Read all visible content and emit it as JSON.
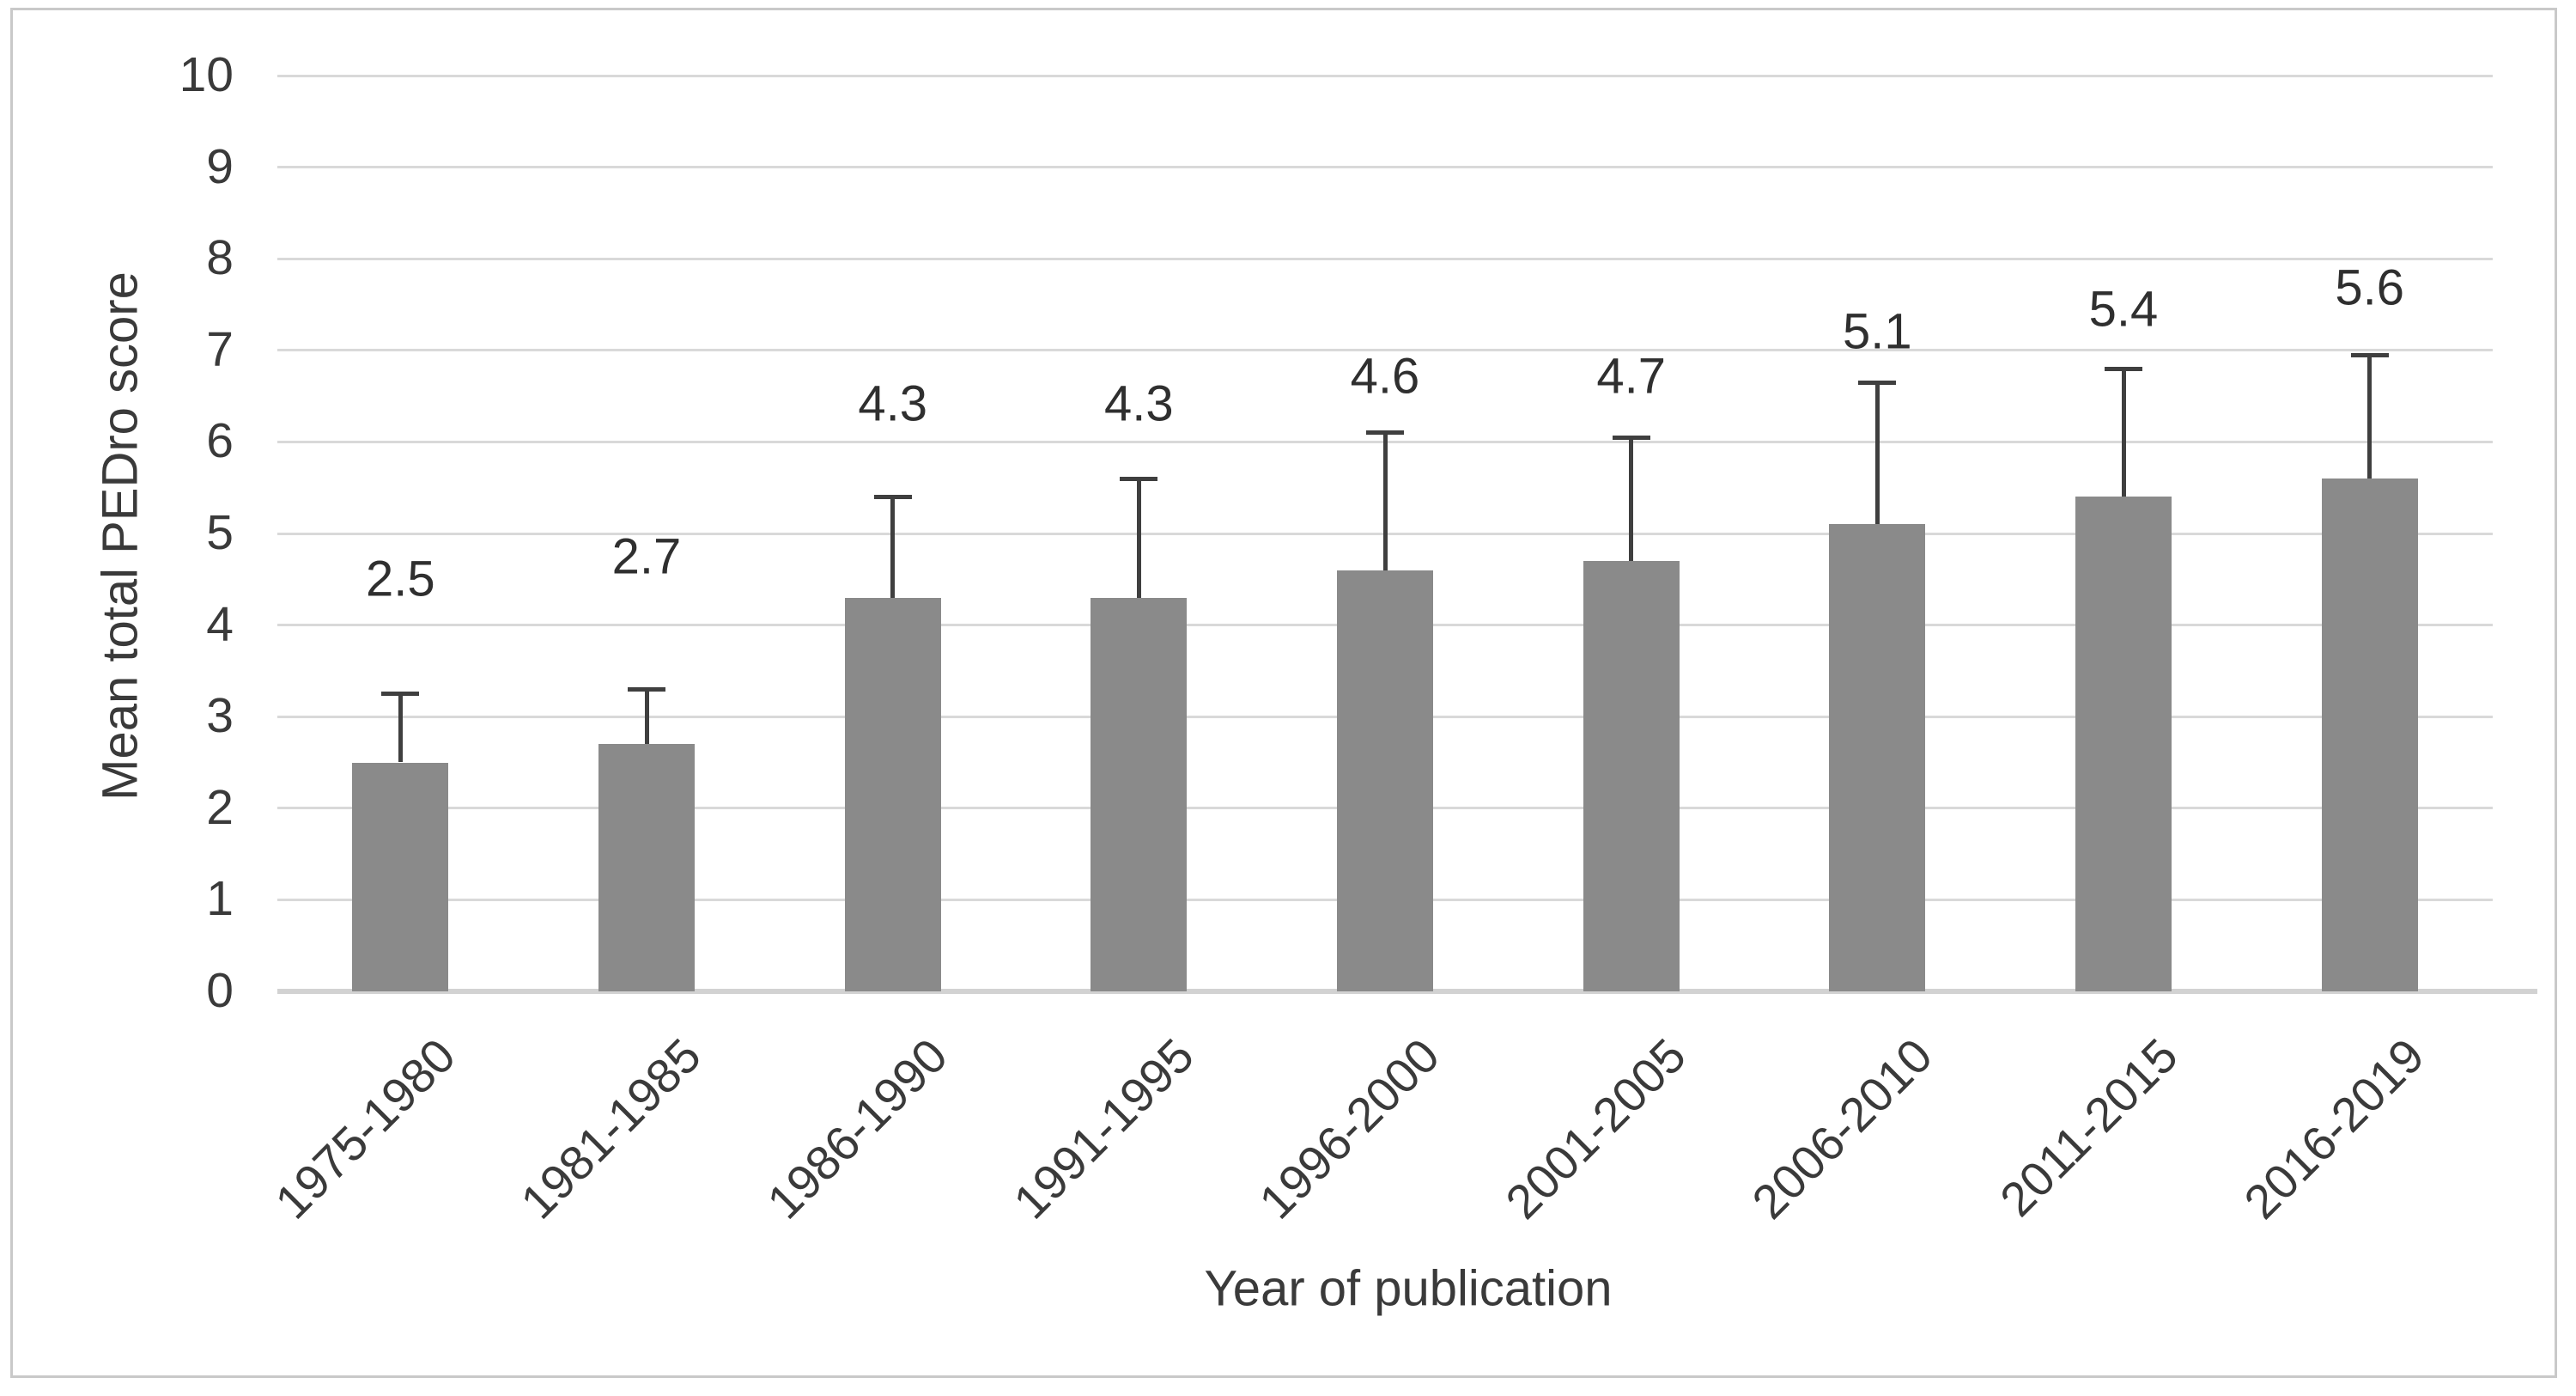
{
  "figure": {
    "background_color": "#ffffff",
    "border_color": "#c9c9c9"
  },
  "chart_data": {
    "type": "bar",
    "title": "",
    "xlabel": "Year of publication",
    "ylabel": "Mean total PEDro score",
    "categories": [
      "1975-1980",
      "1981-1985",
      "1986-1990",
      "1991-1995",
      "1996-2000",
      "2001-2005",
      "2006-2010",
      "2011-2015",
      "2016-2019"
    ],
    "values": [
      2.5,
      2.7,
      4.3,
      4.3,
      4.6,
      4.7,
      5.1,
      5.4,
      5.6
    ],
    "data_labels": [
      "2.5",
      "2.7",
      "4.3",
      "4.3",
      "4.6",
      "4.7",
      "5.1",
      "5.4",
      "5.6"
    ],
    "error_bar_tops": [
      3.25,
      3.3,
      5.4,
      5.6,
      6.1,
      6.05,
      6.65,
      6.8,
      6.95
    ],
    "y_ticks": [
      "0",
      "1",
      "2",
      "3",
      "4",
      "5",
      "6",
      "7",
      "8",
      "9",
      "10"
    ],
    "ylim": [
      0,
      10
    ],
    "grid": "horizontal",
    "legend": "none",
    "bar_color": "#8a8a8a",
    "error_bar_color": "#3f3f3f",
    "gridline_color": "#d9d9d9",
    "text_color": "#3a3a3a",
    "label_y_positions": [
      4.5,
      4.75,
      6.42,
      6.42,
      6.72,
      6.72,
      7.2,
      7.45,
      7.68
    ]
  }
}
